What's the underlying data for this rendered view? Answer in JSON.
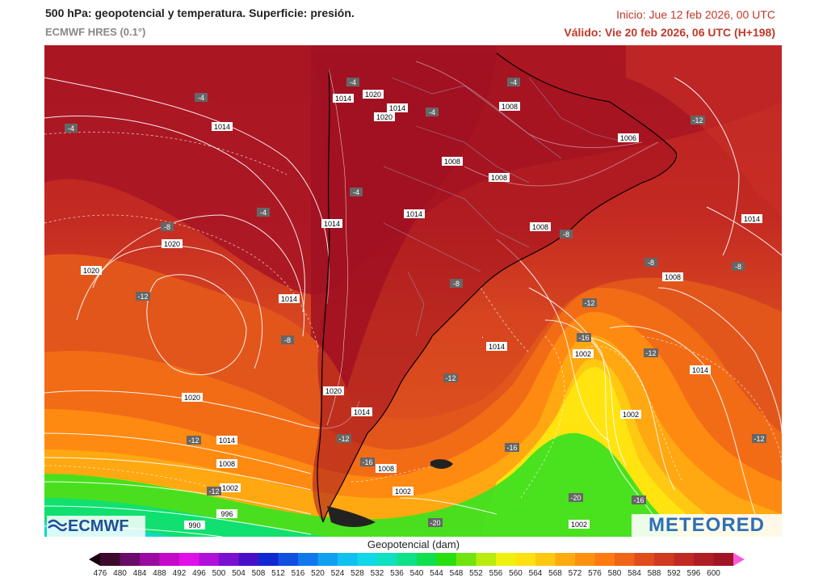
{
  "header": {
    "title": "500 hPa: geopotencial y temperatura. Superficie: presión.",
    "model": "ECMWF HRES (0.1°)",
    "init": "Inicio: Jue 12 feb 2026, 00 UTC",
    "valid": "Válido: Vie 20 feb 2026, 06 UTC (H+198)"
  },
  "logos": {
    "left": "ECMWF",
    "right": "METEORED"
  },
  "colorbar": {
    "title": "Geopotencial (dam)",
    "ticks": [
      "476",
      "480",
      "484",
      "488",
      "492",
      "496",
      "500",
      "504",
      "508",
      "512",
      "516",
      "520",
      "524",
      "528",
      "532",
      "536",
      "540",
      "544",
      "548",
      "552",
      "556",
      "560",
      "564",
      "568",
      "572",
      "576",
      "580",
      "584",
      "588",
      "592",
      "596",
      "600"
    ],
    "colors": [
      "#3b0a2c",
      "#6a0a6a",
      "#9a0aa0",
      "#c40ac8",
      "#e010e8",
      "#b010d8",
      "#7a10d0",
      "#4a10c8",
      "#1028d0",
      "#1050e0",
      "#1078ea",
      "#10a0f0",
      "#10c0f0",
      "#10d8e8",
      "#10e0c0",
      "#10e088",
      "#10e050",
      "#28e010",
      "#70e410",
      "#b8ec10",
      "#f0f010",
      "#ffe010",
      "#ffc810",
      "#ffaa10",
      "#ff9010",
      "#ff7a10",
      "#f06418",
      "#e04c1c",
      "#d03a20",
      "#c02a22",
      "#b01e24",
      "#a01426"
    ],
    "end_colors": [
      "#1a0012",
      "#ff5ad8"
    ]
  },
  "map": {
    "isobar_labels": [
      "1014",
      "1020",
      "1014",
      "1020",
      "1014",
      "1008",
      "1008",
      "1008",
      "1006",
      "1014",
      "1014",
      "1020",
      "1020",
      "1014",
      "1014",
      "1014",
      "1020",
      "1014",
      "1008",
      "1008",
      "1002",
      "1014",
      "1002",
      "1014",
      "1008",
      "1002",
      "1008",
      "1002",
      "996",
      "990",
      "1002",
      "1020",
      "1020",
      "1014"
    ],
    "temp_labels": [
      "-4",
      "-4",
      "-4",
      "-4",
      "-4",
      "-4",
      "-4",
      "-8",
      "-8",
      "-8",
      "-8",
      "-8",
      "-12",
      "-12",
      "-12",
      "-16",
      "-12",
      "-12",
      "-12",
      "-12",
      "-16",
      "-16",
      "-16",
      "-20",
      "-20",
      "-8",
      "-12",
      "-12"
    ]
  }
}
